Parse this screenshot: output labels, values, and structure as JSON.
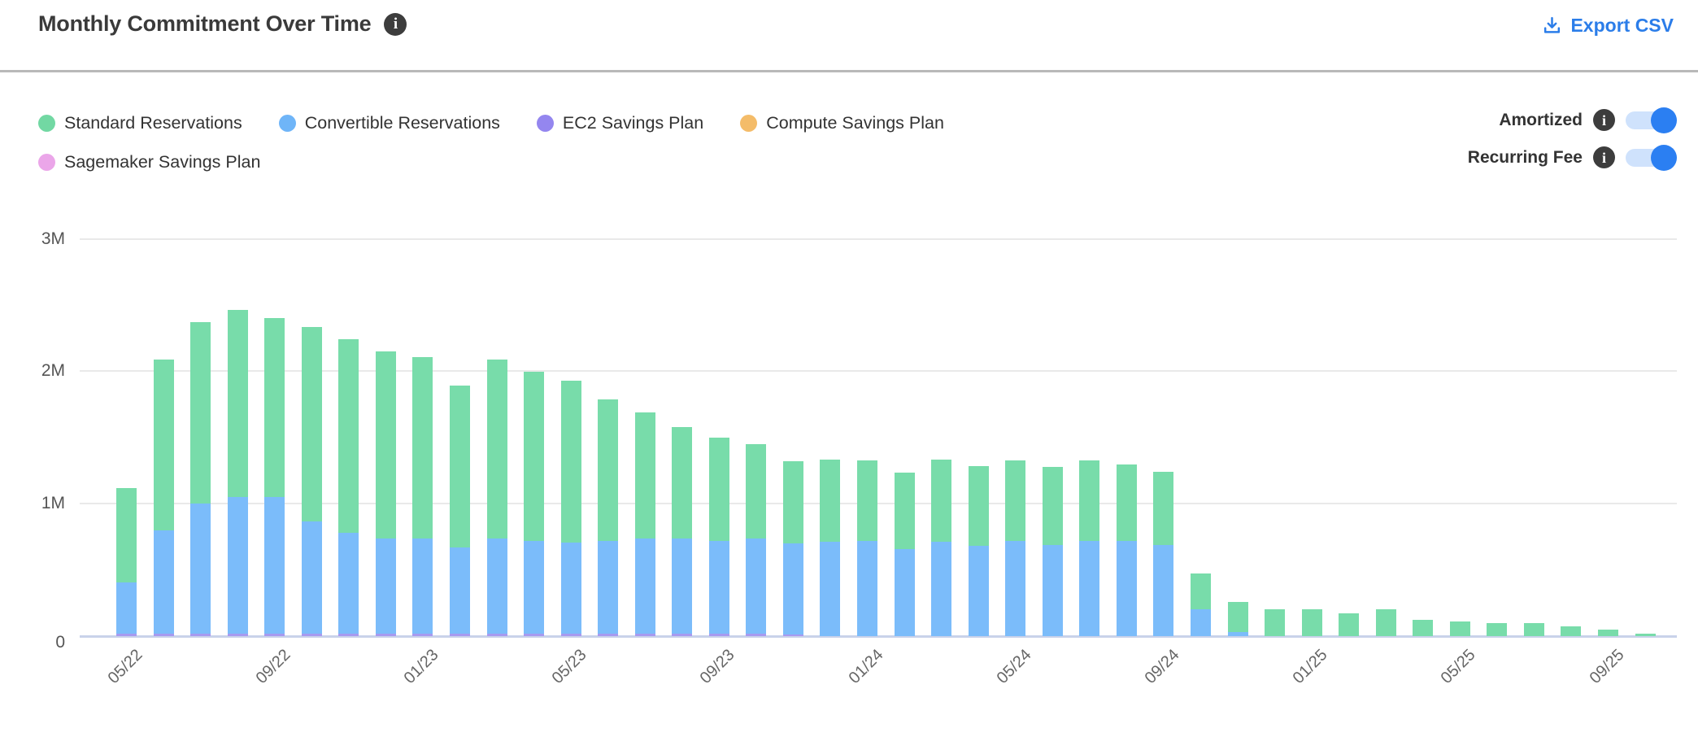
{
  "header": {
    "title": "Monthly Commitment Over Time",
    "export_label": "Export CSV"
  },
  "legend": {
    "items": [
      {
        "label": "Standard Reservations",
        "color": "#72d8a3"
      },
      {
        "label": "Convertible Reservations",
        "color": "#6fb5f8"
      },
      {
        "label": "EC2 Savings Plan",
        "color": "#9486ef"
      },
      {
        "label": "Compute Savings Plan",
        "color": "#f4bc69"
      },
      {
        "label": "Sagemaker Savings Plan",
        "color": "#eba6e9"
      }
    ]
  },
  "controls": {
    "toggles": [
      {
        "label": "Amortized",
        "state": "on"
      },
      {
        "label": "Recurring Fee",
        "state": "on"
      }
    ]
  },
  "chart_data": {
    "type": "bar",
    "stacked": true,
    "title": "Monthly Commitment Over Time",
    "xlabel": "",
    "ylabel": "",
    "ylim": [
      0,
      3
    ],
    "values_unit": "millions",
    "grid": true,
    "legend_position": "top-left",
    "y_ticks": [
      {
        "label": "3M",
        "value": 3
      },
      {
        "label": "2M",
        "value": 2
      },
      {
        "label": "1M",
        "value": 1
      },
      {
        "label": "0",
        "value": 0
      }
    ],
    "x_tick_every": 4,
    "x_tick_labels_shown": [
      "05/22",
      "09/22",
      "01/23",
      "05/23",
      "09/23",
      "01/24",
      "05/24",
      "09/24",
      "01/25",
      "05/25",
      "09/25"
    ],
    "categories": [
      "05/22",
      "06/22",
      "07/22",
      "08/22",
      "09/22",
      "10/22",
      "11/22",
      "12/22",
      "01/23",
      "02/23",
      "03/23",
      "04/23",
      "05/23",
      "06/23",
      "07/23",
      "08/23",
      "09/23",
      "10/23",
      "11/23",
      "12/23",
      "01/24",
      "02/24",
      "03/24",
      "04/24",
      "05/24",
      "06/24",
      "07/24",
      "08/24",
      "09/24",
      "10/24",
      "11/24",
      "12/24",
      "01/25",
      "02/25",
      "03/25",
      "04/25",
      "05/25",
      "06/25",
      "07/25",
      "08/25",
      "09/25",
      "10/25"
    ],
    "series": [
      {
        "name": "EC2 Savings Plan",
        "color": "#a79af0",
        "values": [
          0.02,
          0.02,
          0.02,
          0.02,
          0.02,
          0.02,
          0.02,
          0.02,
          0.02,
          0.02,
          0.02,
          0.02,
          0.02,
          0.02,
          0.02,
          0.02,
          0.02,
          0.02,
          0.01,
          0,
          0,
          0,
          0,
          0,
          0,
          0,
          0,
          0,
          0,
          0,
          0,
          0,
          0,
          0,
          0,
          0,
          0,
          0,
          0,
          0,
          0,
          0
        ]
      },
      {
        "name": "Convertible Reservations",
        "color": "#7bbcfa",
        "values": [
          0.39,
          0.78,
          0.98,
          1.03,
          1.03,
          0.85,
          0.76,
          0.72,
          0.72,
          0.65,
          0.72,
          0.7,
          0.69,
          0.7,
          0.72,
          0.72,
          0.7,
          0.72,
          0.69,
          0.71,
          0.72,
          0.66,
          0.71,
          0.68,
          0.72,
          0.69,
          0.72,
          0.72,
          0.69,
          0.2,
          0.03,
          0,
          0,
          0,
          0,
          0,
          0,
          0,
          0,
          0,
          0,
          0
        ]
      },
      {
        "name": "Standard Reservations",
        "color": "#78dcaa",
        "values": [
          0.71,
          1.29,
          1.37,
          1.41,
          1.35,
          1.47,
          1.46,
          1.41,
          1.37,
          1.22,
          1.35,
          1.28,
          1.22,
          1.07,
          0.95,
          0.84,
          0.78,
          0.71,
          0.62,
          0.62,
          0.61,
          0.58,
          0.62,
          0.6,
          0.61,
          0.59,
          0.61,
          0.58,
          0.55,
          0.27,
          0.23,
          0.2,
          0.2,
          0.17,
          0.2,
          0.12,
          0.11,
          0.1,
          0.1,
          0.075,
          0.05,
          0.02
        ]
      },
      {
        "name": "Compute Savings Plan",
        "color": "#f4bc69",
        "values": [
          0,
          0,
          0,
          0,
          0,
          0,
          0,
          0,
          0,
          0,
          0,
          0,
          0,
          0,
          0,
          0,
          0,
          0,
          0,
          0,
          0,
          0,
          0,
          0,
          0,
          0,
          0,
          0,
          0,
          0,
          0,
          0,
          0,
          0,
          0,
          0,
          0,
          0,
          0,
          0,
          0,
          0
        ]
      },
      {
        "name": "Sagemaker Savings Plan",
        "color": "#eba6e9",
        "values": [
          0,
          0,
          0,
          0,
          0,
          0,
          0,
          0,
          0,
          0,
          0,
          0,
          0,
          0,
          0,
          0,
          0,
          0,
          0,
          0,
          0,
          0,
          0,
          0,
          0,
          0,
          0,
          0,
          0,
          0,
          0,
          0,
          0,
          0,
          0,
          0,
          0,
          0,
          0,
          0,
          0,
          0
        ]
      }
    ]
  }
}
